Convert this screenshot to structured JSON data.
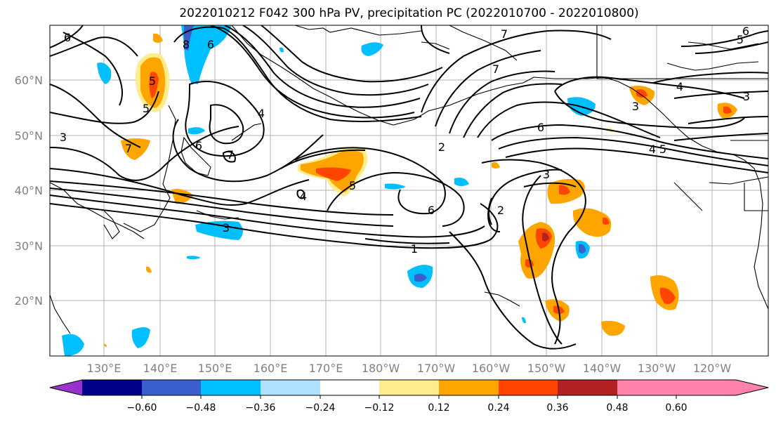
{
  "title": "2022010212 F042 300 hPa PV, precipitation PC (2022010700 - 2022010800)",
  "map": {
    "lat_labels": [
      "60°N",
      "50°N",
      "40°N",
      "30°N",
      "20°N"
    ],
    "lon_labels": [
      "130°E",
      "140°E",
      "150°E",
      "160°E",
      "170°E",
      "180°W",
      "170°W",
      "160°W",
      "150°W",
      "140°W",
      "130°W",
      "120°W"
    ],
    "contour_labels": [
      "6",
      "8",
      "6",
      "5",
      "7",
      "5",
      "3",
      "6",
      "7",
      "4",
      "7",
      "4",
      "2",
      "3",
      "1",
      "2",
      "6",
      "5",
      "3",
      "7",
      "6",
      "4",
      "4",
      "5",
      "3",
      "3",
      "6",
      "5"
    ]
  },
  "colorbar": {
    "tick_labels": [
      "−0.60",
      "−0.48",
      "−0.36",
      "−0.24",
      "−0.12",
      "0.12",
      "0.24",
      "0.36",
      "0.48",
      "0.60"
    ],
    "colors": [
      "#9932cc",
      "#00008b",
      "#3a5fcd",
      "#00bfff",
      "#b0e2ff",
      "#ffffff",
      "#ffec8b",
      "#ffa500",
      "#ff4500",
      "#b22222",
      "#ff82ab"
    ]
  }
}
